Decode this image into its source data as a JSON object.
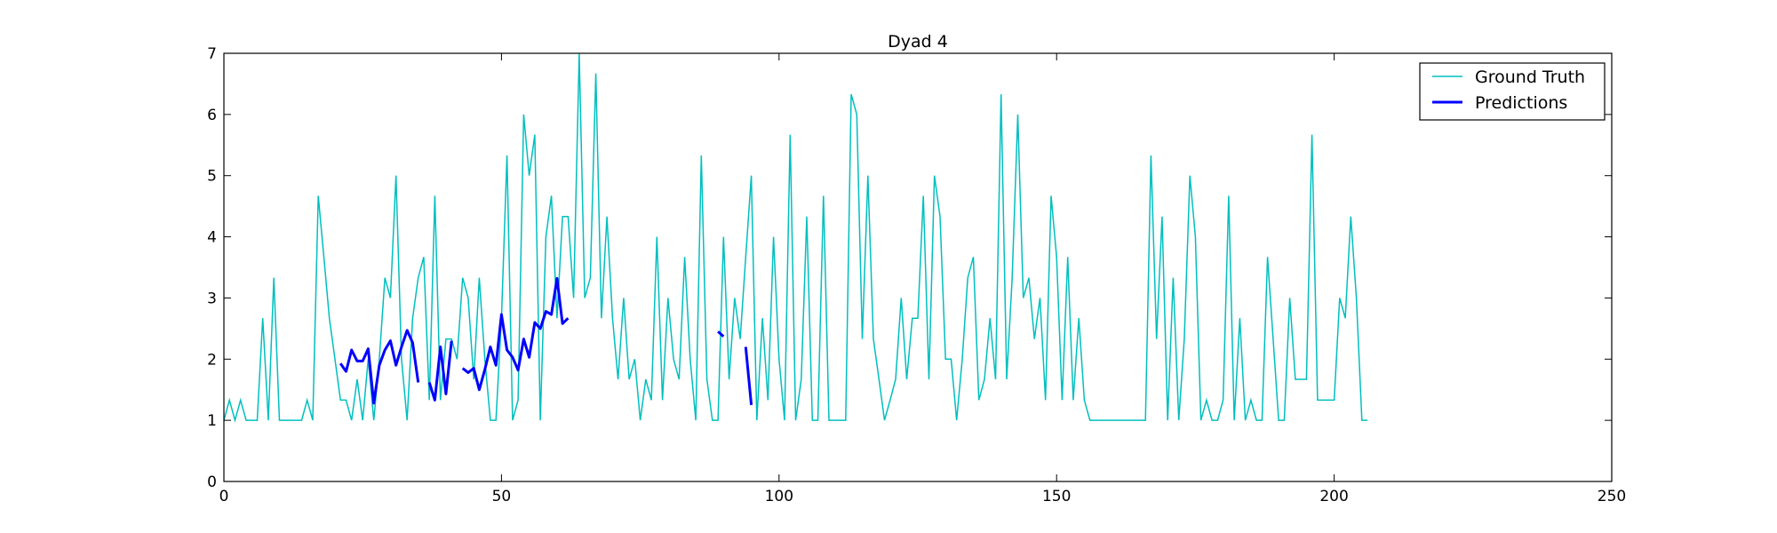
{
  "chart_data": {
    "type": "line",
    "title": "Dyad 4",
    "xlabel": "",
    "ylabel": "",
    "xlim": [
      0,
      250
    ],
    "ylim": [
      0,
      7
    ],
    "xticks": [
      0,
      50,
      100,
      150,
      200,
      250
    ],
    "yticks": [
      0,
      1,
      2,
      3,
      4,
      5,
      6,
      7
    ],
    "legend_position": "top-right",
    "series": [
      {
        "name": "Ground Truth",
        "color": "#00bfbf",
        "points": [
          [
            0,
            1
          ],
          [
            1,
            1.33
          ],
          [
            2,
            1
          ],
          [
            3,
            1.33
          ],
          [
            4,
            1
          ],
          [
            5,
            1
          ],
          [
            6,
            1
          ],
          [
            7,
            2.67
          ],
          [
            8,
            1
          ],
          [
            9,
            3.33
          ],
          [
            10,
            1
          ],
          [
            11,
            1
          ],
          [
            12,
            1
          ],
          [
            13,
            1
          ],
          [
            14,
            1
          ],
          [
            15,
            1.33
          ],
          [
            16,
            1
          ],
          [
            17,
            4.67
          ],
          [
            18,
            3.67
          ],
          [
            19,
            2.67
          ],
          [
            20,
            2
          ],
          [
            21,
            1.33
          ],
          [
            22,
            1.33
          ],
          [
            23,
            1
          ],
          [
            24,
            1.67
          ],
          [
            25,
            1
          ],
          [
            26,
            2
          ],
          [
            27,
            1
          ],
          [
            28,
            2
          ],
          [
            29,
            3.33
          ],
          [
            30,
            3
          ],
          [
            31,
            5
          ],
          [
            32,
            2
          ],
          [
            33,
            1
          ],
          [
            34,
            2.67
          ],
          [
            35,
            3.33
          ],
          [
            36,
            3.67
          ],
          [
            37,
            1.33
          ],
          [
            38,
            4.67
          ],
          [
            39,
            1.33
          ],
          [
            40,
            2.33
          ],
          [
            41,
            2.33
          ],
          [
            42,
            2
          ],
          [
            43,
            3.33
          ],
          [
            44,
            3
          ],
          [
            45,
            1.67
          ],
          [
            46,
            3.33
          ],
          [
            47,
            2
          ],
          [
            48,
            1
          ],
          [
            49,
            1
          ],
          [
            50,
            2.67
          ],
          [
            51,
            5.33
          ],
          [
            52,
            1
          ],
          [
            53,
            1.33
          ],
          [
            54,
            6
          ],
          [
            55,
            5
          ],
          [
            56,
            5.67
          ],
          [
            57,
            1
          ],
          [
            58,
            4
          ],
          [
            59,
            4.67
          ],
          [
            60,
            2.67
          ],
          [
            61,
            4.33
          ],
          [
            62,
            4.33
          ],
          [
            63,
            3
          ],
          [
            64,
            7
          ],
          [
            65,
            3
          ],
          [
            66,
            3.33
          ],
          [
            67,
            6.67
          ],
          [
            68,
            2.67
          ],
          [
            69,
            4.33
          ],
          [
            70,
            2.67
          ],
          [
            71,
            1.67
          ],
          [
            72,
            3
          ],
          [
            73,
            1.67
          ],
          [
            74,
            2
          ],
          [
            75,
            1
          ],
          [
            76,
            1.67
          ],
          [
            77,
            1.33
          ],
          [
            78,
            4
          ],
          [
            79,
            1.33
          ],
          [
            80,
            3
          ],
          [
            81,
            2
          ],
          [
            82,
            1.67
          ],
          [
            83,
            3.67
          ],
          [
            84,
            2
          ],
          [
            85,
            1
          ],
          [
            86,
            5.33
          ],
          [
            87,
            1.67
          ],
          [
            88,
            1
          ],
          [
            89,
            1
          ],
          [
            90,
            4
          ],
          [
            91,
            1.67
          ],
          [
            92,
            3
          ],
          [
            93,
            2.33
          ],
          [
            94,
            3.67
          ],
          [
            95,
            5
          ],
          [
            96,
            1
          ],
          [
            97,
            2.67
          ],
          [
            98,
            1.33
          ],
          [
            99,
            4
          ],
          [
            100,
            2
          ],
          [
            101,
            1
          ],
          [
            102,
            5.67
          ],
          [
            103,
            1
          ],
          [
            104,
            1.67
          ],
          [
            105,
            4.33
          ],
          [
            106,
            1
          ],
          [
            107,
            1
          ],
          [
            108,
            4.67
          ],
          [
            109,
            1
          ],
          [
            110,
            1
          ],
          [
            111,
            1
          ],
          [
            112,
            1
          ],
          [
            113,
            6.33
          ],
          [
            114,
            6
          ],
          [
            115,
            2.33
          ],
          [
            116,
            5
          ],
          [
            117,
            2.33
          ],
          [
            118,
            1.67
          ],
          [
            119,
            1
          ],
          [
            120,
            1.33
          ],
          [
            121,
            1.67
          ],
          [
            122,
            3
          ],
          [
            123,
            1.67
          ],
          [
            124,
            2.67
          ],
          [
            125,
            2.67
          ],
          [
            126,
            4.67
          ],
          [
            127,
            1.67
          ],
          [
            128,
            5
          ],
          [
            129,
            4.33
          ],
          [
            130,
            2
          ],
          [
            131,
            2
          ],
          [
            132,
            1
          ],
          [
            133,
            2
          ],
          [
            134,
            3.33
          ],
          [
            135,
            3.67
          ],
          [
            136,
            1.33
          ],
          [
            137,
            1.67
          ],
          [
            138,
            2.67
          ],
          [
            139,
            1.67
          ],
          [
            140,
            6.33
          ],
          [
            141,
            1.67
          ],
          [
            142,
            3.33
          ],
          [
            143,
            6
          ],
          [
            144,
            3
          ],
          [
            145,
            3.33
          ],
          [
            146,
            2.33
          ],
          [
            147,
            3
          ],
          [
            148,
            1.33
          ],
          [
            149,
            4.67
          ],
          [
            150,
            3.67
          ],
          [
            151,
            1.33
          ],
          [
            152,
            3.67
          ],
          [
            153,
            1.33
          ],
          [
            154,
            2.67
          ],
          [
            155,
            1.33
          ],
          [
            156,
            1
          ],
          [
            157,
            1
          ],
          [
            158,
            1
          ],
          [
            159,
            1
          ],
          [
            160,
            1
          ],
          [
            161,
            1
          ],
          [
            162,
            1
          ],
          [
            163,
            1
          ],
          [
            164,
            1
          ],
          [
            165,
            1
          ],
          [
            166,
            1
          ],
          [
            167,
            5.33
          ],
          [
            168,
            2.33
          ],
          [
            169,
            4.33
          ],
          [
            170,
            1
          ],
          [
            171,
            3.33
          ],
          [
            172,
            1
          ],
          [
            173,
            2.33
          ],
          [
            174,
            5
          ],
          [
            175,
            4
          ],
          [
            176,
            1
          ],
          [
            177,
            1.33
          ],
          [
            178,
            1
          ],
          [
            179,
            1
          ],
          [
            180,
            1.33
          ],
          [
            181,
            4.67
          ],
          [
            182,
            1
          ],
          [
            183,
            2.67
          ],
          [
            184,
            1
          ],
          [
            185,
            1.33
          ],
          [
            186,
            1
          ],
          [
            187,
            1
          ],
          [
            188,
            3.67
          ],
          [
            189,
            2.33
          ],
          [
            190,
            1
          ],
          [
            191,
            1
          ],
          [
            192,
            3
          ],
          [
            193,
            1.67
          ],
          [
            194,
            1.67
          ],
          [
            195,
            1.67
          ],
          [
            196,
            5.67
          ],
          [
            197,
            1.33
          ],
          [
            198,
            1.33
          ],
          [
            199,
            1.33
          ],
          [
            200,
            1.33
          ],
          [
            201,
            3
          ],
          [
            202,
            2.67
          ],
          [
            203,
            4.33
          ],
          [
            204,
            3
          ],
          [
            205,
            1
          ],
          [
            206,
            1
          ]
        ]
      },
      {
        "name": "Predictions",
        "color": "#0000ff",
        "segments": [
          [
            [
              21,
              1.93
            ],
            [
              22,
              1.8
            ],
            [
              23,
              2.15
            ],
            [
              24,
              1.97
            ],
            [
              25,
              1.97
            ],
            [
              26,
              2.17
            ],
            [
              27,
              1.28
            ],
            [
              28,
              1.9
            ],
            [
              29,
              2.15
            ],
            [
              30,
              2.3
            ],
            [
              31,
              1.9
            ],
            [
              32,
              2.2
            ],
            [
              33,
              2.47
            ],
            [
              34,
              2.27
            ],
            [
              35,
              1.62
            ]
          ],
          [
            [
              37,
              1.62
            ],
            [
              38,
              1.33
            ],
            [
              39,
              2.2
            ],
            [
              40,
              1.43
            ],
            [
              41,
              2.3
            ]
          ],
          [
            [
              43,
              1.85
            ],
            [
              44,
              1.78
            ],
            [
              45,
              1.85
            ],
            [
              46,
              1.5
            ],
            [
              47,
              1.83
            ],
            [
              48,
              2.2
            ],
            [
              49,
              1.9
            ],
            [
              50,
              2.73
            ],
            [
              51,
              2.15
            ],
            [
              52,
              2.03
            ],
            [
              53,
              1.82
            ],
            [
              54,
              2.33
            ],
            [
              55,
              2.03
            ],
            [
              56,
              2.6
            ],
            [
              57,
              2.5
            ],
            [
              58,
              2.78
            ],
            [
              59,
              2.73
            ],
            [
              60,
              3.32
            ],
            [
              61,
              2.58
            ],
            [
              62,
              2.67
            ]
          ],
          [
            [
              89,
              2.45
            ],
            [
              90,
              2.37
            ]
          ],
          [
            [
              94,
              2.2
            ],
            [
              95,
              1.25
            ]
          ]
        ]
      }
    ]
  }
}
